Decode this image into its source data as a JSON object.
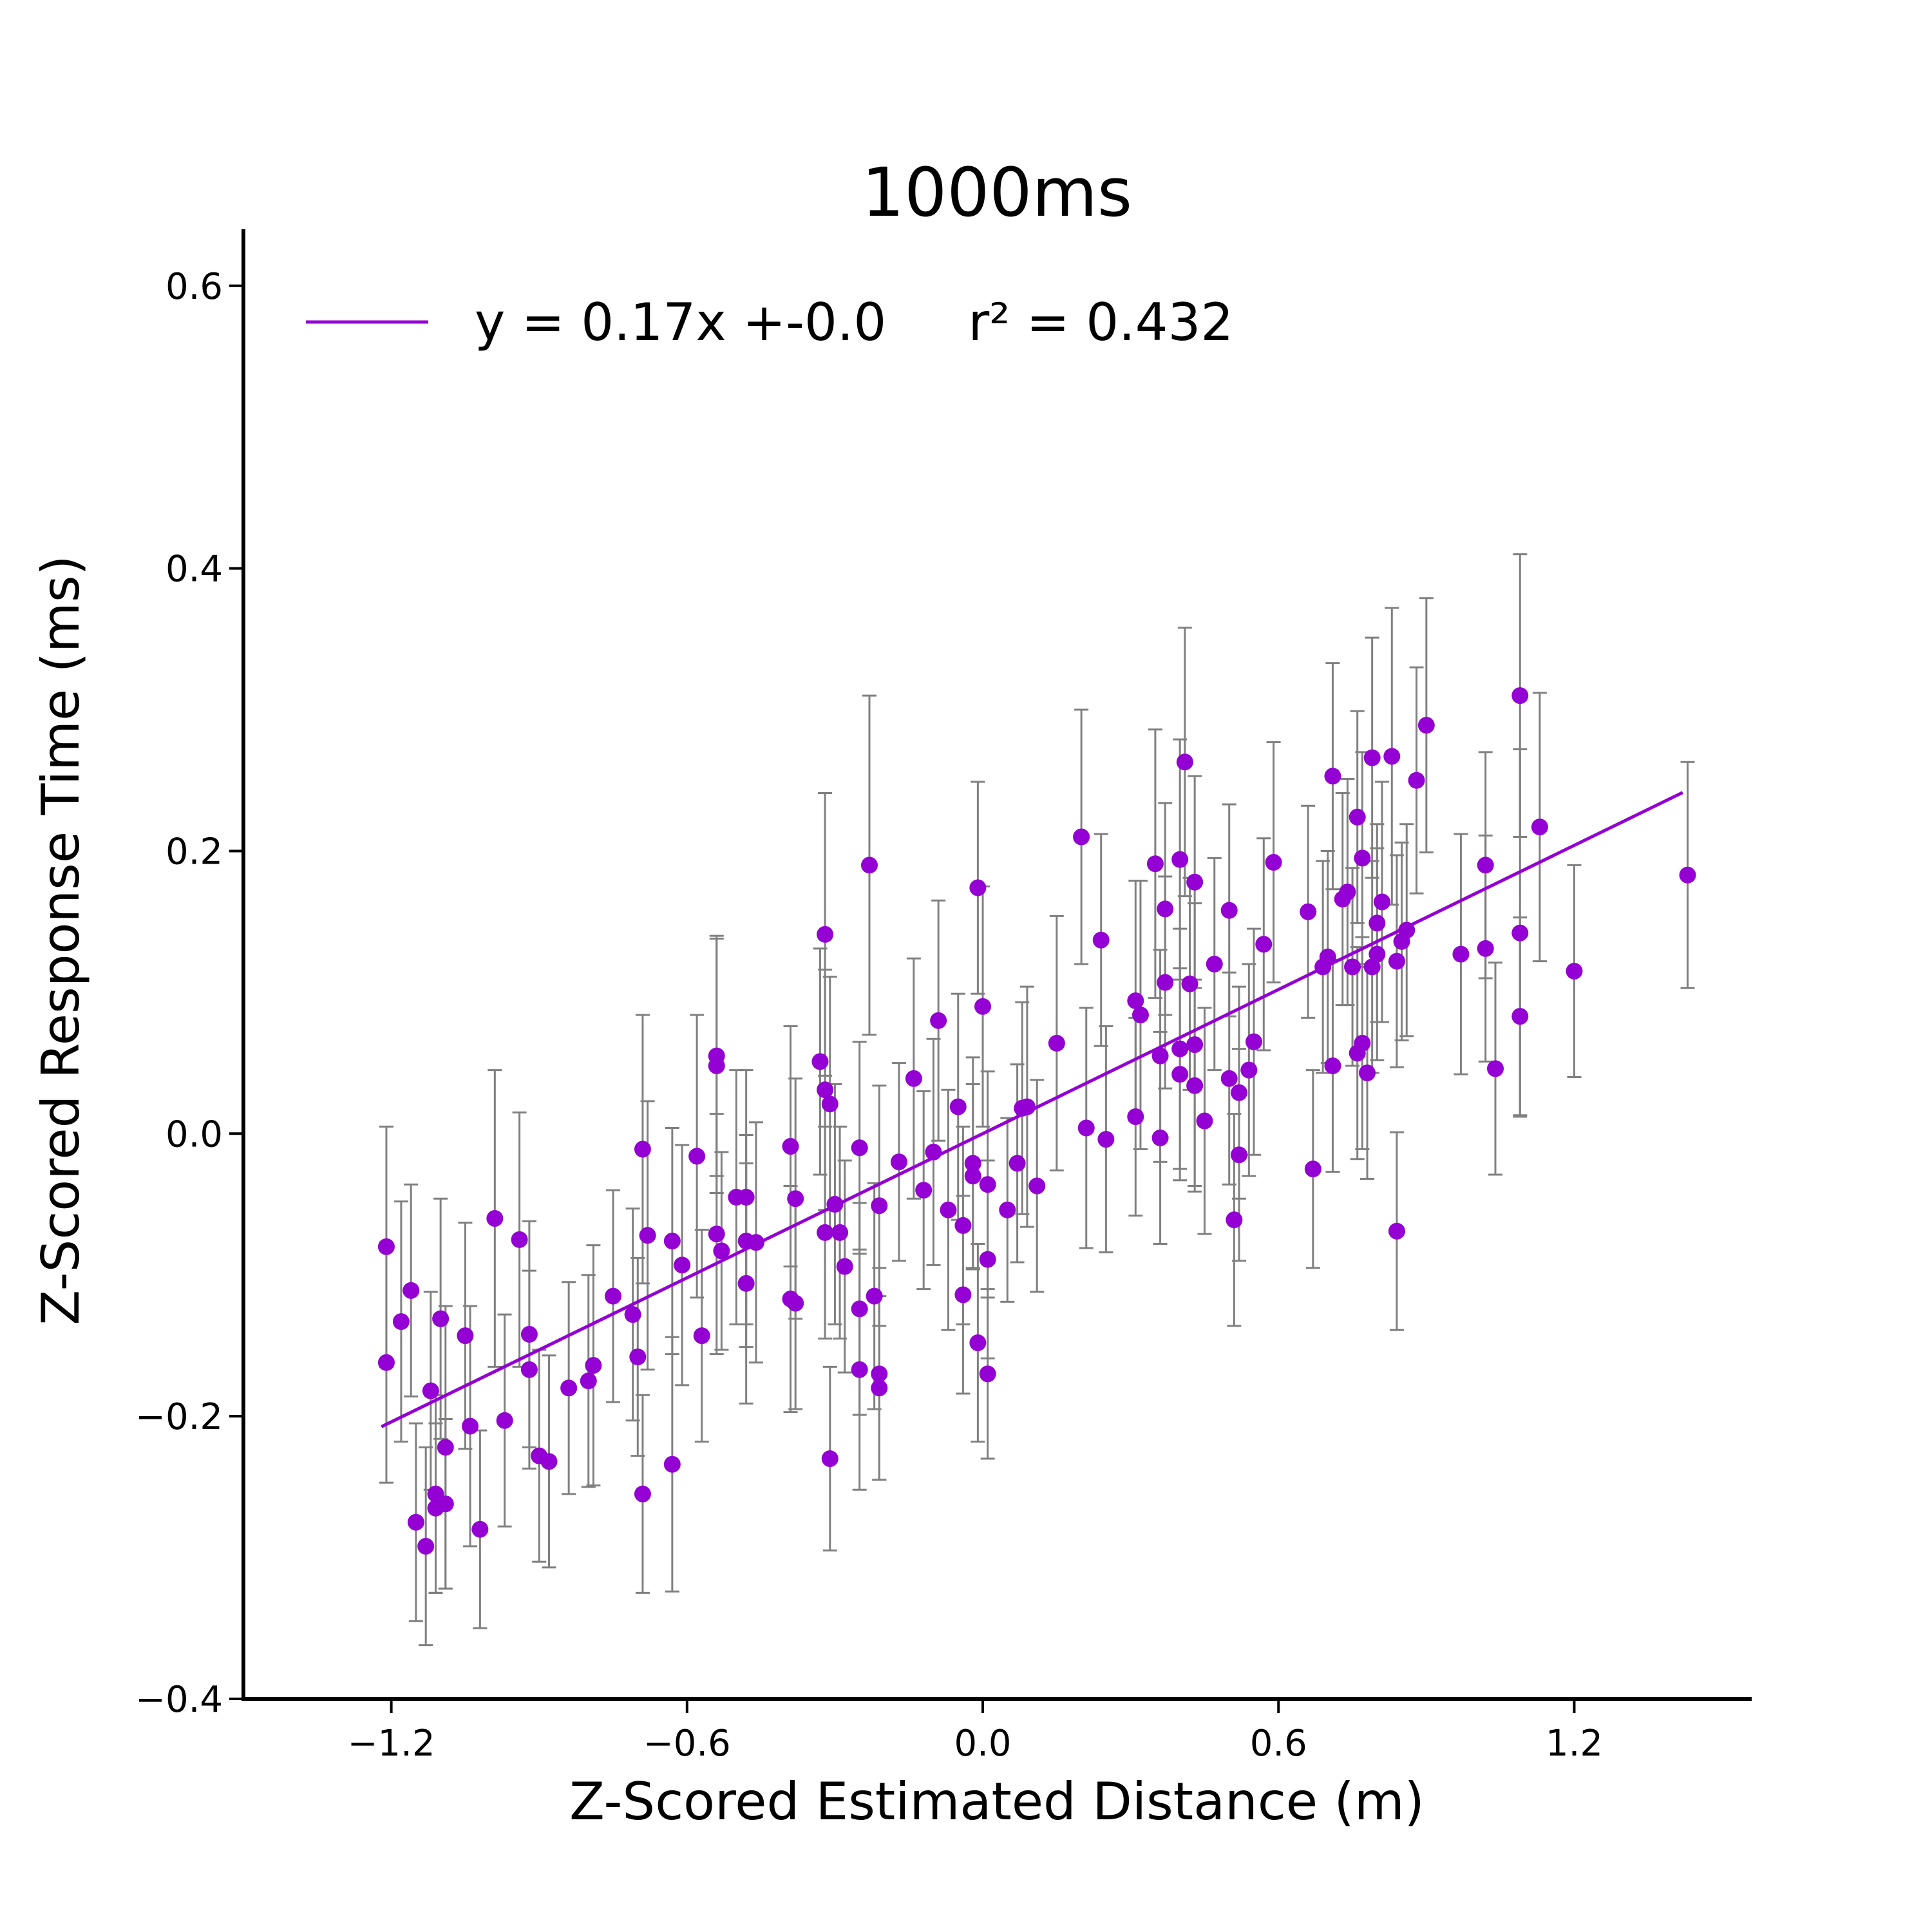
{
  "chart_data": {
    "type": "scatter",
    "title": "1000ms",
    "xlabel": "Z-Scored Estimated Distance (m)",
    "ylabel": "Z-Scored Response Time (ms)",
    "xlim": [
      -1.5,
      1.56
    ],
    "ylim": [
      -0.4,
      0.64
    ],
    "xticks": [
      -1.2,
      -0.6,
      0.0,
      0.6,
      1.2
    ],
    "xtick_labels": [
      "−1.2",
      "−0.6",
      "0.0",
      "0.6",
      "1.2"
    ],
    "yticks": [
      -0.4,
      -0.2,
      0.0,
      0.2,
      0.4,
      0.6
    ],
    "ytick_labels": [
      "−0.4",
      "−0.2",
      "0.0",
      "0.2",
      "0.4",
      "0.6"
    ],
    "grid": false,
    "legend": {
      "placement": "top-left",
      "entries": [
        {
          "label": "y = 0.17x +-0.0     r² = 0.432",
          "color": "#9400d3"
        }
      ]
    },
    "fit_line": {
      "slope": 0.17,
      "intercept": 0.0,
      "x_range": [
        -1.22,
        1.42
      ],
      "color": "#9400d3",
      "equation": "y = 0.17x +-0.0",
      "r_squared": 0.432
    },
    "series": [
      {
        "color": "#9400d3",
        "errorbar_color": "#808080",
        "points": [
          [
            -1.21,
            -0.08,
            0.085
          ],
          [
            -1.21,
            -0.162,
            0.085
          ],
          [
            -1.18,
            -0.133,
            0.085
          ],
          [
            -1.16,
            -0.111,
            0.075
          ],
          [
            -1.15,
            -0.275,
            0.07
          ],
          [
            -1.13,
            -0.292,
            0.07
          ],
          [
            -1.12,
            -0.182,
            0.07
          ],
          [
            -1.11,
            -0.255,
            0.07
          ],
          [
            -1.11,
            -0.265,
            0.06
          ],
          [
            -1.1,
            -0.131,
            0.085
          ],
          [
            -1.09,
            -0.222,
            0.1
          ],
          [
            -1.09,
            -0.262,
            0.06
          ],
          [
            -1.05,
            -0.143,
            0.08
          ],
          [
            -1.04,
            -0.207,
            0.085
          ],
          [
            -1.02,
            -0.28,
            0.07
          ],
          [
            -0.99,
            -0.06,
            0.105
          ],
          [
            -0.97,
            -0.203,
            0.075
          ],
          [
            -0.94,
            -0.075,
            0.09
          ],
          [
            -0.92,
            -0.142,
            0.08
          ],
          [
            -0.92,
            -0.167,
            0.07
          ],
          [
            -0.9,
            -0.228,
            0.075
          ],
          [
            -0.88,
            -0.232,
            0.075
          ],
          [
            -0.84,
            -0.18,
            0.075
          ],
          [
            -0.8,
            -0.175,
            0.075
          ],
          [
            -0.79,
            -0.164,
            0.085
          ],
          [
            -0.75,
            -0.115,
            0.075
          ],
          [
            -0.71,
            -0.128,
            0.075
          ],
          [
            -0.7,
            -0.158,
            0.07
          ],
          [
            -0.69,
            -0.011,
            0.095
          ],
          [
            -0.69,
            -0.255,
            0.07
          ],
          [
            -0.68,
            -0.072,
            0.095
          ],
          [
            -0.63,
            -0.076,
            0.08
          ],
          [
            -0.63,
            -0.234,
            0.09
          ],
          [
            -0.61,
            -0.093,
            0.085
          ],
          [
            -0.58,
            -0.016,
            0.1
          ],
          [
            -0.57,
            -0.143,
            0.075
          ],
          [
            -0.54,
            0.055,
            0.085
          ],
          [
            -0.54,
            -0.071,
            0.085
          ],
          [
            -0.54,
            0.048,
            0.09
          ],
          [
            -0.53,
            -0.083,
            0.07
          ],
          [
            -0.5,
            -0.045,
            0.09
          ],
          [
            -0.48,
            -0.045,
            0.09
          ],
          [
            -0.48,
            -0.076,
            0.075
          ],
          [
            -0.48,
            -0.106,
            0.085
          ],
          [
            -0.46,
            -0.077,
            0.085
          ],
          [
            -0.39,
            -0.009,
            0.085
          ],
          [
            -0.39,
            -0.117,
            0.08
          ],
          [
            -0.38,
            -0.046,
            0.085
          ],
          [
            -0.38,
            -0.12,
            0.075
          ],
          [
            -0.33,
            0.051,
            0.08
          ],
          [
            -0.32,
            0.031,
            0.085
          ],
          [
            -0.32,
            -0.07,
            0.075
          ],
          [
            -0.32,
            0.141,
            0.1
          ],
          [
            -0.31,
            -0.23,
            0.065
          ],
          [
            -0.31,
            0.021,
            0.09
          ],
          [
            -0.3,
            -0.05,
            0.085
          ],
          [
            -0.29,
            -0.07,
            0.075
          ],
          [
            -0.28,
            -0.094,
            0.075
          ],
          [
            -0.25,
            -0.167,
            0.085
          ],
          [
            -0.25,
            -0.124,
            0.075
          ],
          [
            -0.25,
            -0.01,
            0.075
          ],
          [
            -0.23,
            0.19,
            0.12
          ],
          [
            -0.22,
            -0.115,
            0.08
          ],
          [
            -0.21,
            -0.17,
            0.075
          ],
          [
            -0.21,
            -0.18,
            0.065
          ],
          [
            -0.21,
            -0.051,
            0.085
          ],
          [
            -0.17,
            -0.02,
            0.07
          ],
          [
            -0.14,
            0.039,
            0.085
          ],
          [
            -0.12,
            -0.04,
            0.07
          ],
          [
            -0.1,
            -0.013,
            0.08
          ],
          [
            -0.09,
            0.08,
            0.085
          ],
          [
            -0.07,
            -0.054,
            0.085
          ],
          [
            -0.05,
            0.019,
            0.08
          ],
          [
            -0.04,
            -0.065,
            0.07
          ],
          [
            -0.04,
            -0.114,
            0.07
          ],
          [
            -0.02,
            -0.021,
            0.075
          ],
          [
            -0.02,
            -0.03,
            0.065
          ],
          [
            -0.01,
            0.174,
            0.075
          ],
          [
            -0.01,
            -0.148,
            0.07
          ],
          [
            0.0,
            0.09,
            0.085
          ],
          [
            0.01,
            -0.089,
            0.07
          ],
          [
            0.01,
            -0.17,
            0.06
          ],
          [
            0.01,
            -0.036,
            0.08
          ],
          [
            0.05,
            -0.054,
            0.065
          ],
          [
            0.07,
            -0.021,
            0.07
          ],
          [
            0.08,
            0.018,
            0.075
          ],
          [
            0.09,
            0.019,
            0.085
          ],
          [
            0.11,
            -0.037,
            0.075
          ],
          [
            0.15,
            0.064,
            0.09
          ],
          [
            0.2,
            0.21,
            0.09
          ],
          [
            0.21,
            0.004,
            0.085
          ],
          [
            0.24,
            0.137,
            0.075
          ],
          [
            0.25,
            -0.004,
            0.08
          ],
          [
            0.31,
            0.094,
            0.085
          ],
          [
            0.31,
            0.012,
            0.07
          ],
          [
            0.32,
            0.084,
            0.095
          ],
          [
            0.35,
            0.191,
            0.095
          ],
          [
            0.36,
            0.055,
            0.075
          ],
          [
            0.36,
            -0.003,
            0.075
          ],
          [
            0.37,
            0.159,
            0.075
          ],
          [
            0.37,
            0.107,
            0.075
          ],
          [
            0.4,
            0.194,
            0.085
          ],
          [
            0.4,
            0.06,
            0.085
          ],
          [
            0.4,
            0.042,
            0.075
          ],
          [
            0.41,
            0.263,
            0.095
          ],
          [
            0.42,
            0.106,
            0.075
          ],
          [
            0.43,
            0.034,
            0.075
          ],
          [
            0.43,
            0.178,
            0.075
          ],
          [
            0.43,
            0.063,
            0.1
          ],
          [
            0.45,
            0.009,
            0.08
          ],
          [
            0.47,
            0.12,
            0.075
          ],
          [
            0.5,
            0.039,
            0.075
          ],
          [
            0.5,
            0.158,
            0.075
          ],
          [
            0.51,
            -0.061,
            0.075
          ],
          [
            0.52,
            0.029,
            0.075
          ],
          [
            0.52,
            -0.015,
            0.075
          ],
          [
            0.54,
            0.045,
            0.075
          ],
          [
            0.55,
            0.065,
            0.08
          ],
          [
            0.57,
            0.134,
            0.075
          ],
          [
            0.59,
            0.192,
            0.085
          ],
          [
            0.66,
            0.157,
            0.075
          ],
          [
            0.67,
            -0.025,
            0.07
          ],
          [
            0.69,
            0.118,
            0.075
          ],
          [
            0.7,
            0.125,
            0.075
          ],
          [
            0.71,
            0.048,
            0.075
          ],
          [
            0.71,
            0.253,
            0.08
          ],
          [
            0.73,
            0.166,
            0.075
          ],
          [
            0.74,
            0.171,
            0.08
          ],
          [
            0.75,
            0.118,
            0.07
          ],
          [
            0.76,
            0.224,
            0.075
          ],
          [
            0.76,
            0.057,
            0.075
          ],
          [
            0.77,
            0.064,
            0.075
          ],
          [
            0.77,
            0.195,
            0.075
          ],
          [
            0.78,
            0.043,
            0.075
          ],
          [
            0.79,
            0.266,
            0.085
          ],
          [
            0.79,
            0.118,
            0.075
          ],
          [
            0.8,
            0.149,
            0.07
          ],
          [
            0.8,
            0.127,
            0.075
          ],
          [
            0.81,
            0.164,
            0.085
          ],
          [
            0.83,
            0.267,
            0.105
          ],
          [
            0.84,
            -0.069,
            0.07
          ],
          [
            0.84,
            0.122,
            0.075
          ],
          [
            0.85,
            0.136,
            0.07
          ],
          [
            0.86,
            0.144,
            0.075
          ],
          [
            0.88,
            0.25,
            0.08
          ],
          [
            0.9,
            0.289,
            0.09
          ],
          [
            0.97,
            0.127,
            0.085
          ],
          [
            1.02,
            0.19,
            0.08
          ],
          [
            1.02,
            0.131,
            0.08
          ],
          [
            1.04,
            0.046,
            0.075
          ],
          [
            1.09,
            0.31,
            0.1
          ],
          [
            1.09,
            0.142,
            0.13
          ],
          [
            1.09,
            0.083,
            0.07
          ],
          [
            1.13,
            0.217,
            0.095
          ],
          [
            1.2,
            0.115,
            0.075
          ],
          [
            1.43,
            0.183,
            0.08
          ]
        ]
      }
    ]
  }
}
